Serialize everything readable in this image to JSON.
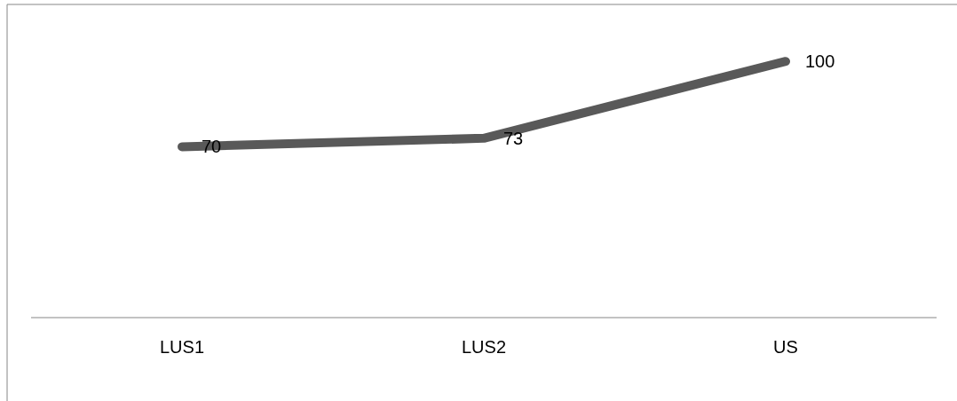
{
  "chart_data": {
    "type": "line",
    "categories": [
      "LUS1",
      "LUS2",
      "US"
    ],
    "series": [
      {
        "color": "#595959",
        "values": [
          70,
          73,
          100
        ]
      }
    ],
    "ylim": [
      10,
      120
    ],
    "tick_labels": "x",
    "data_labels": true,
    "marker": "none",
    "line_style": "solid"
  }
}
